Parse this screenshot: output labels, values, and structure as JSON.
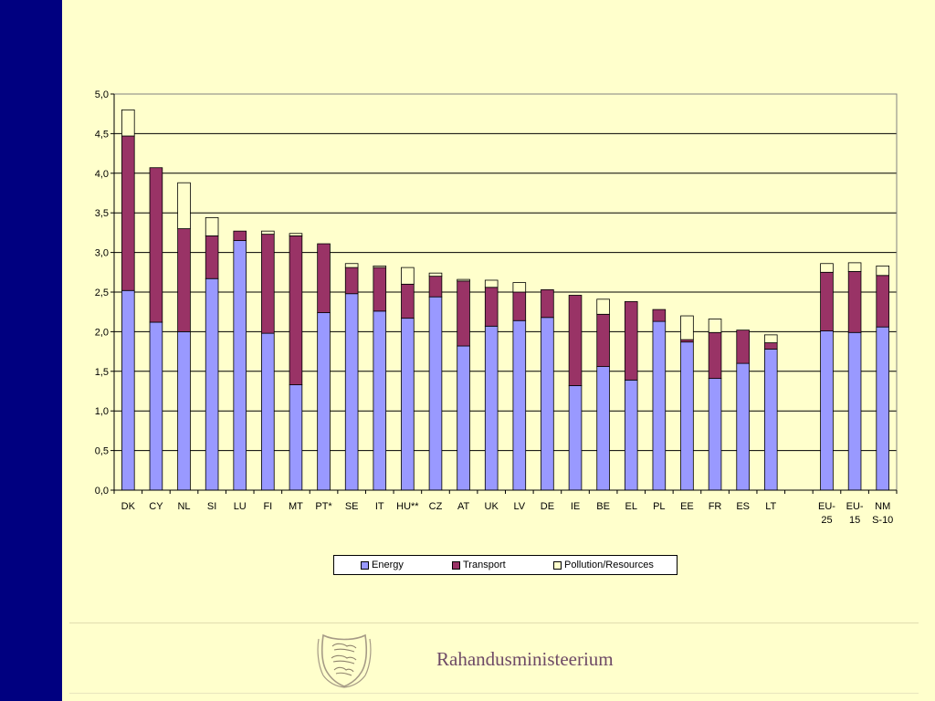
{
  "chart_data": {
    "type": "bar",
    "stacked": true,
    "categories": [
      "DK",
      "CY",
      "NL",
      "SI",
      "LU",
      "FI",
      "MT",
      "PT*",
      "SE",
      "IT",
      "HU**",
      "CZ",
      "AT",
      "UK",
      "LV",
      "DE",
      "IE",
      "BE",
      "EL",
      "PL",
      "EE",
      "FR",
      "ES",
      "LT",
      "",
      "EU-25",
      "EU-15",
      "NMS-10"
    ],
    "category_labels": [
      [
        "DK"
      ],
      [
        "CY"
      ],
      [
        "NL"
      ],
      [
        "SI"
      ],
      [
        "LU"
      ],
      [
        "FI"
      ],
      [
        "MT"
      ],
      [
        "PT*"
      ],
      [
        "SE"
      ],
      [
        "IT"
      ],
      [
        "HU**"
      ],
      [
        "CZ"
      ],
      [
        "AT"
      ],
      [
        "UK"
      ],
      [
        "LV"
      ],
      [
        "DE"
      ],
      [
        "IE"
      ],
      [
        "BE"
      ],
      [
        "EL"
      ],
      [
        "PL"
      ],
      [
        "EE"
      ],
      [
        "FR"
      ],
      [
        "ES"
      ],
      [
        "LT"
      ],
      [],
      [
        "EU-",
        "25"
      ],
      [
        "EU-",
        "15"
      ],
      [
        "NM",
        "S-10"
      ]
    ],
    "series": [
      {
        "name": "Energy",
        "color": "#9999FF",
        "values": [
          2.52,
          2.12,
          2.0,
          2.67,
          3.15,
          1.98,
          1.33,
          2.24,
          2.48,
          2.26,
          2.17,
          2.44,
          1.82,
          2.07,
          2.14,
          2.18,
          1.32,
          1.56,
          1.39,
          2.13,
          1.87,
          1.41,
          1.6,
          1.78,
          null,
          2.01,
          1.99,
          2.06
        ]
      },
      {
        "name": "Transport",
        "color": "#993366",
        "values": [
          1.95,
          1.95,
          1.3,
          0.54,
          0.12,
          1.25,
          1.88,
          0.87,
          0.33,
          0.55,
          0.43,
          0.26,
          0.82,
          0.49,
          0.36,
          0.35,
          1.14,
          0.66,
          0.99,
          0.15,
          0.03,
          0.58,
          0.42,
          0.08,
          null,
          0.74,
          0.77,
          0.65
        ]
      },
      {
        "name": "Pollution/Resources",
        "color": "#FFFFCC",
        "values": [
          0.33,
          0.0,
          0.58,
          0.23,
          0.0,
          0.04,
          0.03,
          0.0,
          0.05,
          0.02,
          0.21,
          0.04,
          0.02,
          0.09,
          0.12,
          0.0,
          0.0,
          0.19,
          0.0,
          0.0,
          0.3,
          0.17,
          0.0,
          0.1,
          null,
          0.11,
          0.11,
          0.12
        ]
      }
    ],
    "ylim": [
      0,
      5.0
    ],
    "yticks": [
      "0,0",
      "0,5",
      "1,0",
      "1,5",
      "2,0",
      "2,5",
      "3,0",
      "3,5",
      "4,0",
      "4,5",
      "5,0"
    ],
    "ytick_values": [
      0,
      0.5,
      1.0,
      1.5,
      2.0,
      2.5,
      3.0,
      3.5,
      4.0,
      4.5,
      5.0
    ],
    "grid": true,
    "legend_position": "bottom",
    "title": "",
    "xlabel": "",
    "ylabel": ""
  },
  "footer": {
    "ministry": "Rahandusministeerium",
    "crest_icon": "estonian-coat-of-arms"
  },
  "colors": {
    "background": "#FFFFCC",
    "side_bar": "#000080",
    "gridline": "#000000"
  }
}
